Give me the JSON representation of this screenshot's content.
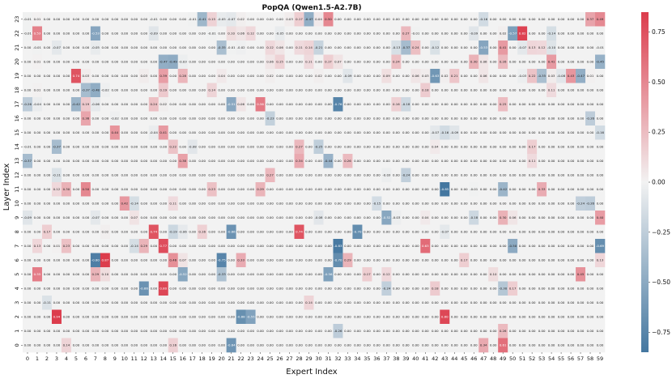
{
  "chart_data": {
    "type": "heatmap",
    "title": "PopQA (Qwen1.5-A2.7B)",
    "xlabel": "Expert Index",
    "ylabel": "Layer Index",
    "x_categories": [
      "0",
      "1",
      "2",
      "3",
      "4",
      "5",
      "6",
      "7",
      "8",
      "9",
      "10",
      "11",
      "12",
      "13",
      "14",
      "15",
      "16",
      "17",
      "18",
      "19",
      "20",
      "21",
      "22",
      "23",
      "24",
      "25",
      "26",
      "27",
      "28",
      "29",
      "30",
      "31",
      "32",
      "33",
      "34",
      "35",
      "36",
      "37",
      "38",
      "39",
      "40",
      "41",
      "42",
      "43",
      "44",
      "45",
      "46",
      "47",
      "48",
      "49",
      "50",
      "51",
      "52",
      "53",
      "54",
      "55",
      "56",
      "57",
      "58",
      "59"
    ],
    "y_categories_top_to_bottom": [
      "23",
      "22",
      "21",
      "20",
      "19",
      "18",
      "17",
      "16",
      "15",
      "14",
      "13",
      "12",
      "11",
      "10",
      "9",
      "8",
      "7",
      "6",
      "5",
      "4",
      "3",
      "2",
      "1",
      "0"
    ],
    "colormap": {
      "negative": "#4477a0",
      "neutral": "#f2f2f2",
      "positive": "#dc3c4c"
    },
    "vmin": -0.85,
    "vmax": 0.85,
    "colorbar_ticks": [
      0.75,
      0.5,
      0.25,
      0.0,
      -0.25,
      -0.5,
      -0.75
    ],
    "colorbar_tick_labels": [
      "0.75",
      "0.50",
      "0.25",
      "0.00",
      "−0.25",
      "−0.50",
      "−0.75"
    ],
    "default_value": 0.0,
    "cells": {
      "23": {
        "0": -0.01,
        "1": 0.01,
        "8": 0.0,
        "13": -0.01,
        "17": -0.01,
        "18": -0.41,
        "19": 0.15,
        "20": -0.05,
        "21": -0.07,
        "22": 0.02,
        "27": 0.03,
        "28": 0.17,
        "29": -0.47,
        "30": 0.04,
        "31": 0.5,
        "47": -0.16,
        "58": 0.37,
        "59": 0.49
      },
      "22": {
        "0": -0.01,
        "1": 0.53,
        "7": -0.53,
        "13": -0.09,
        "19": -0.01,
        "21": 0.1,
        "22": 0.06,
        "23": 0.12,
        "26": -0.05,
        "39": 0.27,
        "40": -0.01,
        "46": -0.09,
        "49": 0.02,
        "50": -0.57,
        "51": 0.82,
        "54": -0.14
      },
      "21": {
        "0": 0.0,
        "1": -0.01,
        "3": -0.07,
        "7": -0.05,
        "20": -0.35,
        "21": -0.01,
        "22": -0.02,
        "25": 0.12,
        "26": 0.06,
        "28": 0.11,
        "29": 0.14,
        "30": -0.21,
        "38": -0.13,
        "39": -0.37,
        "40": 0.24,
        "42": -0.12,
        "47": -0.53,
        "49": 0.41,
        "51": -0.07,
        "52": 0.13,
        "53": 0.12,
        "54": -0.1,
        "59": -0.01
      },
      "20": {
        "1": 0.01,
        "14": -0.47,
        "15": -0.49,
        "16": -0.03,
        "25": 0.06,
        "26": 0.15,
        "29": 0.11,
        "31": 0.17,
        "32": 0.07,
        "38": 0.24,
        "46": 0.3,
        "47": 0.06,
        "49": 0.26,
        "54": 0.41,
        "59": -0.45
      },
      "19": {
        "5": 0.74,
        "6": 0.03,
        "12": 0.03,
        "14": 0.39,
        "16": 0.28,
        "20": 0.04,
        "25": 0.02,
        "30": 0.02,
        "33": -0.09,
        "37": 0.09,
        "40": 0.06,
        "41": 0.03,
        "42": -0.63,
        "43": 0.02,
        "44": 0.21,
        "47": 0.06,
        "51": -0.03,
        "52": 0.22,
        "53": -0.35,
        "54": 0.03,
        "55": -0.08,
        "56": 0.43,
        "57": -0.47,
        "58": 0.01
      },
      "18": {
        "0": 0.0,
        "1": 0.01,
        "6": -0.37,
        "7": -0.48,
        "8": -0.02,
        "14": 0.19,
        "19": 0.14,
        "41": 0.18,
        "54": 0.11
      },
      "17": {
        "0": -0.26,
        "1": -0.04,
        "2": 0.0,
        "5": -0.42,
        "6": 0.19,
        "7": -0.06,
        "13": 0.24,
        "14": 0.02,
        "21": -0.51,
        "22": 0.06,
        "24": 0.56,
        "32": -0.76,
        "38": 0.16,
        "39": -0.18,
        "49": 0.25
      },
      "16": {
        "0": 0.0,
        "6": 0.36,
        "9": -0.02,
        "25": -0.23,
        "58": -0.26
      },
      "15": {
        "9": 0.44,
        "14": 0.41,
        "13": -0.04,
        "49": 0.0,
        "42": -0.07,
        "43": -0.16,
        "44": -0.09,
        "59": -0.16
      },
      "14": {
        "0": -0.01,
        "3": -0.37,
        "17": -0.08,
        "15": 0.22,
        "28": 0.27,
        "30": -0.25,
        "42": 0.04,
        "52": 0.17
      },
      "13": {
        "0": -0.37,
        "16": 0.38,
        "28": 0.34,
        "31": -0.44,
        "33": 0.26,
        "52": 0.11
      },
      "12": {
        "3": -0.11,
        "25": 0.27,
        "37": -0.03,
        "39": -0.24
      },
      "11": {
        "3": 0.12,
        "4": 0.3,
        "6": 0.5,
        "19": 0.23,
        "24": 0.29,
        "43": -0.85,
        "46": -0.01,
        "49": -0.42,
        "53": 0.33
      },
      "10": {
        "10": 0.42,
        "11": -0.14,
        "15": 0.11,
        "36": -0.15,
        "57": -0.24,
        "58": -0.26
      },
      "9": {
        "0": -0.09,
        "7": -0.07,
        "11": 0.07,
        "30": -0.08,
        "37": -0.52,
        "38": -0.03,
        "41": 0.04,
        "46": -0.18,
        "49": 0.3,
        "50": 0.06,
        "59": 0.4
      },
      "8": {
        "2": 0.17,
        "8": 0.02,
        "13": 0.74,
        "15": -0.19,
        "16": -0.06,
        "18": 0.16,
        "21": -0.66,
        "28": 0.74,
        "34": -0.7,
        "43": -0.07
      },
      "7": {
        "1": 0.13,
        "3": 0.01,
        "4": 0.23,
        "11": -0.14,
        "12": 0.29,
        "14": 0.77,
        "32": -0.83,
        "41": 0.63,
        "50": -0.5,
        "59": -0.69
      },
      "6": {
        "7": -0.8,
        "8": 0.87,
        "15": 0.46,
        "16": 0.07,
        "20": -0.75,
        "22": 0.33,
        "32": -0.7,
        "33": 0.29,
        "45": 0.17,
        "59": 0.13
      },
      "5": {
        "1": 0.55,
        "7": 0.29,
        "8": 0.1,
        "16": -0.52,
        "20": -0.33,
        "31": -0.56,
        "35": 0.17,
        "37": 0.12,
        "48": 0.1,
        "57": 0.45
      },
      "4": {
        "12": -0.66,
        "14": 0.8,
        "37": -0.24,
        "42": 0.18,
        "49": -0.3,
        "50": 0.17
      },
      "3": {
        "2": -0.11,
        "29": 0.14
      },
      "2": {
        "3": 0.94,
        "22": -0.68,
        "23": -0.55,
        "43": 0.8
      },
      "1": {
        "32": -0.26,
        "49": 0.26
      },
      "0": {
        "4": 0.14,
        "15": 0.16,
        "21": -0.64,
        "47": 0.34,
        "49": 0.61
      }
    }
  }
}
